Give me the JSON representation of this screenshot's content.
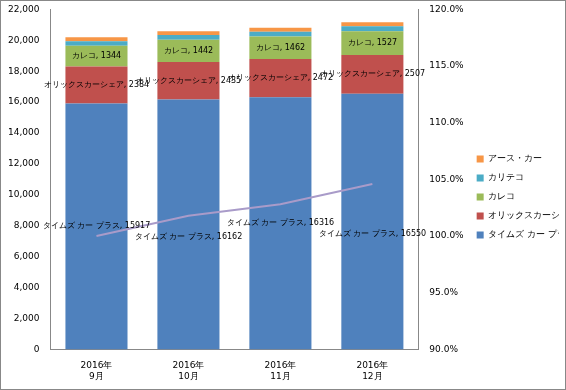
{
  "chart_data": {
    "type": "bar",
    "stacked": true,
    "grid": false,
    "legend": "right",
    "categories": [
      [
        "2016年",
        "9月"
      ],
      [
        "2016年",
        "10月"
      ],
      [
        "2016年",
        "11月"
      ],
      [
        "2016年",
        "12月"
      ]
    ],
    "ylim": [
      0,
      22000
    ],
    "yticks": [
      0,
      {
        "value": 2000,
        "label": "2,000"
      },
      {
        "value": 4000,
        "label": "4,000"
      },
      {
        "value": 6000,
        "label": "6,000"
      },
      {
        "value": 8000,
        "label": "8,000"
      },
      {
        "value": 10000,
        "label": "10,000"
      },
      {
        "value": 12000,
        "label": "12,000"
      },
      {
        "value": 14000,
        "label": "14,000"
      },
      {
        "value": 16000,
        "label": "16,000"
      },
      {
        "value": 18000,
        "label": "18,000"
      },
      {
        "value": 20000,
        "label": "20,000"
      },
      {
        "value": 22000,
        "label": "22,000"
      }
    ],
    "y2lim": [
      90,
      120
    ],
    "y2ticks": [
      {
        "value": 90,
        "label": "90.0%"
      },
      {
        "value": 95,
        "label": "95.0%"
      },
      {
        "value": 100,
        "label": "100.0%"
      },
      {
        "value": 105,
        "label": "105.0%"
      },
      {
        "value": 110,
        "label": "110.0%"
      },
      {
        "value": 115,
        "label": "115.0%"
      },
      {
        "value": 120,
        "label": "120.0%"
      }
    ],
    "series": [
      {
        "name": "タイムズ カー プラス",
        "color": "#4f81bd",
        "values": [
          15917,
          16162,
          16316,
          16550
        ],
        "data_labels": true,
        "value_labels": [
          "タイムズ カー プラス, 15917",
          "タイムズ カー プラス, 16162",
          "タイムズ カー プラス, 16316",
          "タイムズ カー プラス, 16550"
        ]
      },
      {
        "name": "オリックスカーシェア",
        "color": "#c0504d",
        "values": [
          2384,
          2435,
          2472,
          2507
        ],
        "data_labels": true,
        "value_labels": [
          "オリックスカーシェア, 2384",
          "オリックスカーシェア, 2435",
          "オリックスカーシェア, 2472",
          "オリックスカーシェア, 2507"
        ]
      },
      {
        "name": "カレコ",
        "color": "#9bbb59",
        "values": [
          1344,
          1442,
          1462,
          1527
        ],
        "data_labels": true,
        "value_labels": [
          "カレコ, 1344",
          "カレコ, 1442",
          "カレコ, 1462",
          "カレコ, 1527"
        ]
      },
      {
        "name": "カリテコ",
        "color": "#4bacc6",
        "values": [
          300,
          300,
          310,
          320
        ]
      },
      {
        "name": "アース・カー",
        "color": "#f79646",
        "values": [
          250,
          250,
          260,
          270
        ]
      },
      {
        "type": "line",
        "axis": "y2",
        "color": "#a99bc9",
        "marker": "none",
        "line_style": "solid",
        "values": [
          100.0,
          101.8,
          102.8,
          104.6
        ]
      }
    ]
  }
}
